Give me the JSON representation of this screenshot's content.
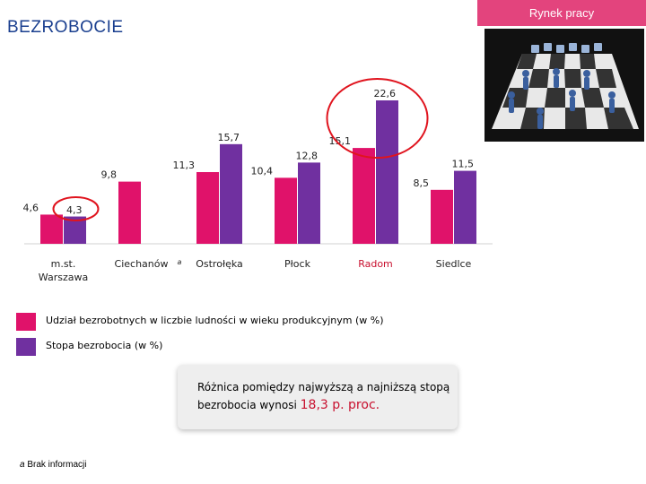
{
  "header": {
    "tag": "Rynek pracy",
    "title": "BEZROBOCIE"
  },
  "chart_data": {
    "type": "bar",
    "categories": [
      "m.st. Warszawa",
      "Ciechanów",
      "Ostrołęka",
      "Płock",
      "Radom",
      "Siedlce"
    ],
    "category_markers": [
      "",
      "a",
      "",
      "",
      "",
      ""
    ],
    "series": [
      {
        "name": "Udział bezrobotnych w liczbie ludności w wieku produkcyjnym (w %)",
        "color": "#e0126a",
        "values": [
          4.6,
          9.8,
          11.3,
          10.4,
          15.1,
          8.5
        ],
        "labels": [
          "4,6",
          "9,8",
          "11,3",
          "10,4",
          "15,1",
          "8,5"
        ]
      },
      {
        "name": "Stopa bezrobocia (w %)",
        "color": "#7030a0",
        "values": [
          4.3,
          null,
          15.7,
          12.8,
          22.6,
          11.5
        ],
        "labels": [
          "4,3",
          "",
          "15,7",
          "12,8",
          "22,6",
          "11,5"
        ]
      }
    ],
    "highlighted_categories": [
      "Radom"
    ],
    "highlight_category_color": "#c8102e",
    "circled_labels": [
      {
        "category": "m.st. Warszawa",
        "series": 1
      },
      {
        "category": "Radom",
        "series": 1
      }
    ],
    "highlight_color": "#e0141e",
    "ylim": [
      0,
      25
    ],
    "grid": false,
    "legend": "bottom-left"
  },
  "note": {
    "text_before": "Różnica pomiędzy najwyższą a najniższą stopą bezrobocia wynosi ",
    "highlight": "18,3 p. proc."
  },
  "footnote": {
    "marker": "a",
    "text": " Brak informacji"
  }
}
